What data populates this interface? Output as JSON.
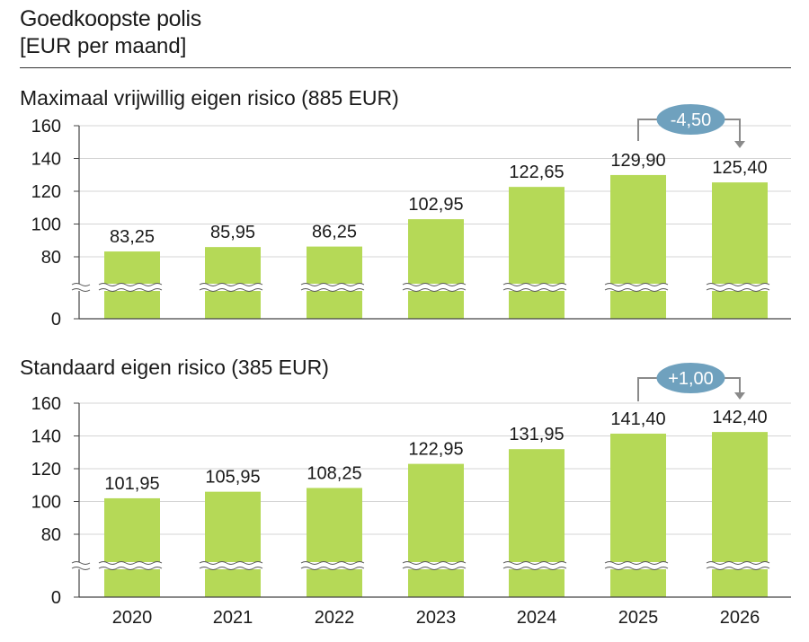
{
  "title": "Goedkoopste polis",
  "subtitle": "[EUR per maand]",
  "colors": {
    "bar": "#b5d957",
    "grid": "#d4d4d4",
    "axis": "#444444",
    "badge": "#6fa1be",
    "arrow": "#8a8a8a",
    "break_fill": "#ffffff"
  },
  "chart_data": [
    {
      "type": "bar",
      "title": "Maximaal vrijwillig eigen risico (885 EUR)",
      "categories": [
        "2020",
        "2021",
        "2022",
        "2023",
        "2024",
        "2025",
        "2026"
      ],
      "values": [
        83.25,
        85.95,
        86.25,
        102.95,
        122.65,
        129.9,
        125.4
      ],
      "value_labels": [
        "83,25",
        "85,95",
        "86,25",
        "102,95",
        "122,65",
        "129,90",
        "125,40"
      ],
      "yticks": [
        0,
        80,
        100,
        120,
        140,
        160
      ],
      "ylim": [
        0,
        160
      ],
      "axis_break": true,
      "annotation": {
        "text": "-4,50",
        "from": "2025",
        "to": "2026"
      },
      "show_xlabels": false
    },
    {
      "type": "bar",
      "title": "Standaard eigen risico (385 EUR)",
      "categories": [
        "2020",
        "2021",
        "2022",
        "2023",
        "2024",
        "2025",
        "2026"
      ],
      "values": [
        101.95,
        105.95,
        108.25,
        122.95,
        131.95,
        141.4,
        142.4
      ],
      "value_labels": [
        "101,95",
        "105,95",
        "108,25",
        "122,95",
        "131,95",
        "141,40",
        "142,40"
      ],
      "yticks": [
        0,
        80,
        100,
        120,
        140,
        160
      ],
      "ylim": [
        0,
        160
      ],
      "axis_break": true,
      "annotation": {
        "text": "+1,00",
        "from": "2025",
        "to": "2026"
      },
      "show_xlabels": true
    }
  ]
}
